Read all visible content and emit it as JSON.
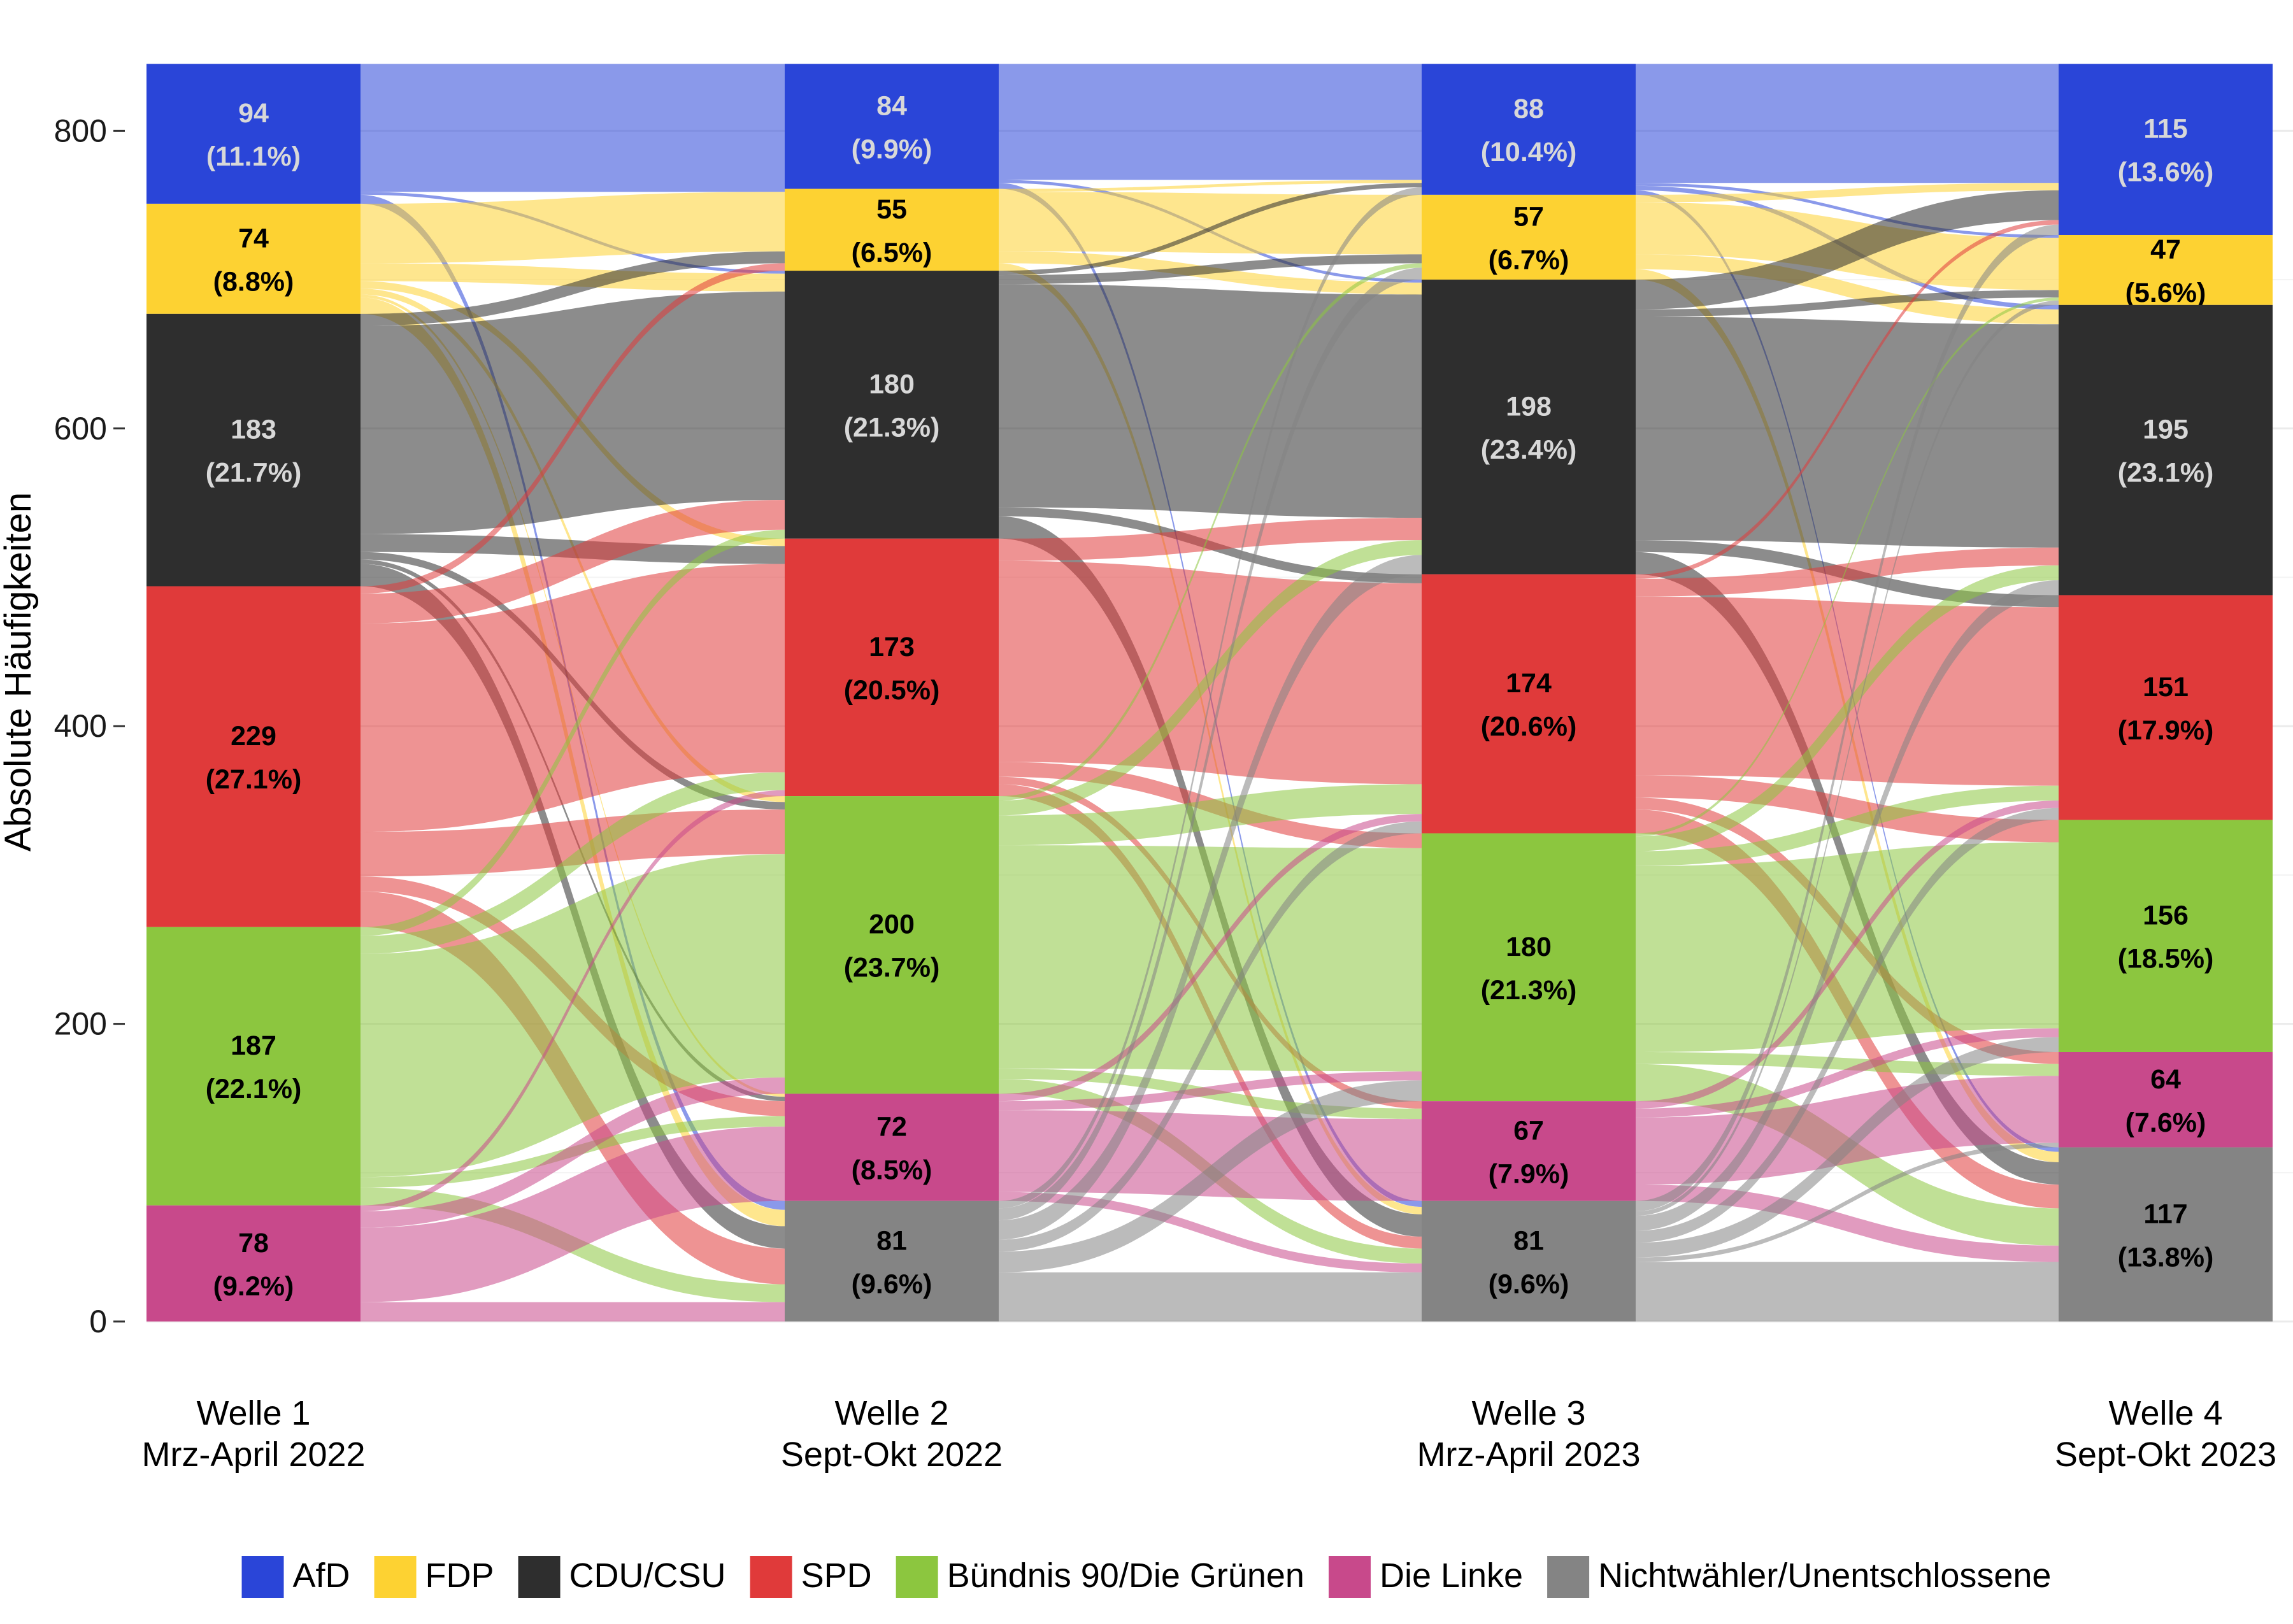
{
  "chart_data": {
    "type": "alluvial",
    "title": "",
    "ylabel": "Absolute Häufigkeiten",
    "ylim": [
      0,
      845
    ],
    "yticks": [
      0,
      200,
      400,
      600,
      800
    ],
    "grid": true,
    "legend_position": "bottom",
    "categories": [
      "AfD",
      "FDP",
      "CDU/CSU",
      "SPD",
      "Bündnis 90/Die Grünen",
      "Die Linke",
      "Nichtwähler/Unentschlossene"
    ],
    "colors": {
      "AfD": "#2a45d8",
      "FDP": "#fdd232",
      "CDU/CSU": "#2e2e2e",
      "SPD": "#e03a3a",
      "Bündnis 90/Die Grünen": "#8cc63f",
      "Die Linke": "#c8498b",
      "Nichtwähler/Unentschlossene": "#848484"
    },
    "waves": [
      {
        "label": [
          "Welle 1",
          "Mrz-April 2022"
        ],
        "nodes": [
          {
            "party": "AfD",
            "value": 94,
            "count_label": "94",
            "pct_label": "(11.1%)"
          },
          {
            "party": "FDP",
            "value": 74,
            "count_label": "74",
            "pct_label": "(8.8%)"
          },
          {
            "party": "CDU/CSU",
            "value": 183,
            "count_label": "183",
            "pct_label": "(21.7%)"
          },
          {
            "party": "SPD",
            "value": 229,
            "count_label": "229",
            "pct_label": "(27.1%)"
          },
          {
            "party": "Bündnis 90/Die Grünen",
            "value": 187,
            "count_label": "187",
            "pct_label": "(22.1%)"
          },
          {
            "party": "Die Linke",
            "value": 78,
            "count_label": "78",
            "pct_label": "(9.2%)"
          }
        ]
      },
      {
        "label": [
          "Welle 2",
          "Sept-Okt 2022"
        ],
        "nodes": [
          {
            "party": "AfD",
            "value": 84,
            "count_label": "84",
            "pct_label": "(9.9%)"
          },
          {
            "party": "FDP",
            "value": 55,
            "count_label": "55",
            "pct_label": "(6.5%)"
          },
          {
            "party": "CDU/CSU",
            "value": 180,
            "count_label": "180",
            "pct_label": "(21.3%)"
          },
          {
            "party": "SPD",
            "value": 173,
            "count_label": "173",
            "pct_label": "(20.5%)"
          },
          {
            "party": "Bündnis 90/Die Grünen",
            "value": 200,
            "count_label": "200",
            "pct_label": "(23.7%)"
          },
          {
            "party": "Die Linke",
            "value": 72,
            "count_label": "72",
            "pct_label": "(8.5%)"
          },
          {
            "party": "Nichtwähler/Unentschlossene",
            "value": 81,
            "count_label": "81",
            "pct_label": "(9.6%)"
          }
        ]
      },
      {
        "label": [
          "Welle 3",
          "Mrz-April 2023"
        ],
        "nodes": [
          {
            "party": "AfD",
            "value": 88,
            "count_label": "88",
            "pct_label": "(10.4%)"
          },
          {
            "party": "FDP",
            "value": 57,
            "count_label": "57",
            "pct_label": "(6.7%)"
          },
          {
            "party": "CDU/CSU",
            "value": 198,
            "count_label": "198",
            "pct_label": "(23.4%)"
          },
          {
            "party": "SPD",
            "value": 174,
            "count_label": "174",
            "pct_label": "(20.6%)"
          },
          {
            "party": "Bündnis 90/Die Grünen",
            "value": 180,
            "count_label": "180",
            "pct_label": "(21.3%)"
          },
          {
            "party": "Die Linke",
            "value": 67,
            "count_label": "67",
            "pct_label": "(7.9%)"
          },
          {
            "party": "Nichtwähler/Unentschlossene",
            "value": 81,
            "count_label": "81",
            "pct_label": "(9.6%)"
          }
        ]
      },
      {
        "label": [
          "Welle 4",
          "Sept-Okt 2023"
        ],
        "nodes": [
          {
            "party": "AfD",
            "value": 115,
            "count_label": "115",
            "pct_label": "(13.6%)"
          },
          {
            "party": "FDP",
            "value": 47,
            "count_label": "47",
            "pct_label": "(5.6%)"
          },
          {
            "party": "CDU/CSU",
            "value": 195,
            "count_label": "195",
            "pct_label": "(23.1%)"
          },
          {
            "party": "SPD",
            "value": 151,
            "count_label": "151",
            "pct_label": "(17.9%)"
          },
          {
            "party": "Bündnis 90/Die Grünen",
            "value": 156,
            "count_label": "156",
            "pct_label": "(18.5%)"
          },
          {
            "party": "Die Linke",
            "value": 64,
            "count_label": "64",
            "pct_label": "(7.6%)"
          },
          {
            "party": "Nichtwähler/Unentschlossene",
            "value": 117,
            "count_label": "117",
            "pct_label": "(13.8%)"
          }
        ]
      }
    ],
    "flows": [
      [
        [
          "AfD",
          "AfD",
          84
        ],
        [
          "AfD",
          "FDP",
          2
        ],
        [
          "AfD",
          "CDU/CSU",
          2
        ],
        [
          "AfD",
          "Nichtwähler/Unentschlossene",
          6
        ],
        [
          "FDP",
          "FDP",
          40
        ],
        [
          "FDP",
          "CDU/CSU",
          12
        ],
        [
          "FDP",
          "SPD",
          5
        ],
        [
          "FDP",
          "Bündnis 90/Die Grünen",
          4
        ],
        [
          "FDP",
          "Die Linke",
          2
        ],
        [
          "FDP",
          "Nichtwähler/Unentschlossene",
          11
        ],
        [
          "CDU/CSU",
          "FDP",
          8
        ],
        [
          "CDU/CSU",
          "CDU/CSU",
          140
        ],
        [
          "CDU/CSU",
          "SPD",
          12
        ],
        [
          "CDU/CSU",
          "Bündnis 90/Die Grünen",
          5
        ],
        [
          "CDU/CSU",
          "Die Linke",
          3
        ],
        [
          "CDU/CSU",
          "Nichtwähler/Unentschlossene",
          15
        ],
        [
          "SPD",
          "FDP",
          5
        ],
        [
          "SPD",
          "CDU/CSU",
          20
        ],
        [
          "SPD",
          "SPD",
          140
        ],
        [
          "SPD",
          "Bündnis 90/Die Grünen",
          30
        ],
        [
          "SPD",
          "Die Linke",
          10
        ],
        [
          "SPD",
          "Nichtwähler/Unentschlossene",
          24
        ],
        [
          "Bündnis 90/Die Grünen",
          "CDU/CSU",
          6
        ],
        [
          "Bündnis 90/Die Grünen",
          "SPD",
          12
        ],
        [
          "Bündnis 90/Die Grünen",
          "Bündnis 90/Die Grünen",
          150
        ],
        [
          "Bündnis 90/Die Grünen",
          "Die Linke",
          7
        ],
        [
          "Bündnis 90/Die Grünen",
          "Nichtwähler/Unentschlossene",
          12
        ],
        [
          "Die Linke",
          "SPD",
          4
        ],
        [
          "Die Linke",
          "Bündnis 90/Die Grünen",
          11
        ],
        [
          "Die Linke",
          "Die Linke",
          50
        ],
        [
          "Die Linke",
          "Nichtwähler/Unentschlossene",
          13
        ]
      ],
      [
        [
          "AfD",
          "AfD",
          78
        ],
        [
          "AfD",
          "CDU/CSU",
          2
        ],
        [
          "AfD",
          "Nichtwähler/Unentschlossene",
          4
        ],
        [
          "FDP",
          "AfD",
          2
        ],
        [
          "FDP",
          "FDP",
          40
        ],
        [
          "FDP",
          "CDU/CSU",
          8
        ],
        [
          "FDP",
          "Nichtwähler/Unentschlossene",
          5
        ],
        [
          "CDU/CSU",
          "AfD",
          3
        ],
        [
          "CDU/CSU",
          "FDP",
          6
        ],
        [
          "CDU/CSU",
          "CDU/CSU",
          150
        ],
        [
          "CDU/CSU",
          "SPD",
          6
        ],
        [
          "CDU/CSU",
          "Nichtwähler/Unentschlossene",
          15
        ],
        [
          "SPD",
          "CDU/CSU",
          15
        ],
        [
          "SPD",
          "SPD",
          135
        ],
        [
          "SPD",
          "Bündnis 90/Die Grünen",
          10
        ],
        [
          "SPD",
          "Die Linke",
          5
        ],
        [
          "SPD",
          "Nichtwähler/Unentschlossene",
          8
        ],
        [
          "Bündnis 90/Die Grünen",
          "FDP",
          3
        ],
        [
          "Bündnis 90/Die Grünen",
          "CDU/CSU",
          10
        ],
        [
          "Bündnis 90/Die Grünen",
          "SPD",
          20
        ],
        [
          "Bündnis 90/Die Grünen",
          "Bündnis 90/Die Grünen",
          150
        ],
        [
          "Bündnis 90/Die Grünen",
          "Die Linke",
          7
        ],
        [
          "Bündnis 90/Die Grünen",
          "Nichtwähler/Unentschlossene",
          10
        ],
        [
          "Die Linke",
          "SPD",
          5
        ],
        [
          "Die Linke",
          "Bündnis 90/Die Grünen",
          6
        ],
        [
          "Die Linke",
          "Die Linke",
          55
        ],
        [
          "Die Linke",
          "Nichtwähler/Unentschlossene",
          6
        ],
        [
          "Nichtwähler/Unentschlossene",
          "AfD",
          5
        ],
        [
          "Nichtwähler/Unentschlossene",
          "FDP",
          8
        ],
        [
          "Nichtwähler/Unentschlossene",
          "CDU/CSU",
          13
        ],
        [
          "Nichtwähler/Unentschlossene",
          "SPD",
          8
        ],
        [
          "Nichtwähler/Unentschlossene",
          "Bündnis 90/Die Grünen",
          14
        ],
        [
          "Nichtwähler/Unentschlossene",
          "Die Linke",
          0
        ],
        [
          "Nichtwähler/Unentschlossene",
          "Nichtwähler/Unentschlossene",
          33
        ]
      ],
      [
        [
          "AfD",
          "AfD",
          80
        ],
        [
          "AfD",
          "FDP",
          2
        ],
        [
          "AfD",
          "CDU/CSU",
          3
        ],
        [
          "AfD",
          "Nichtwähler/Unentschlossene",
          3
        ],
        [
          "FDP",
          "AfD",
          5
        ],
        [
          "FDP",
          "FDP",
          35
        ],
        [
          "FDP",
          "CDU/CSU",
          10
        ],
        [
          "FDP",
          "Nichtwähler/Unentschlossene",
          7
        ],
        [
          "CDU/CSU",
          "AfD",
          20
        ],
        [
          "CDU/CSU",
          "FDP",
          5
        ],
        [
          "CDU/CSU",
          "CDU/CSU",
          150
        ],
        [
          "CDU/CSU",
          "SPD",
          8
        ],
        [
          "CDU/CSU",
          "Nichtwähler/Unentschlossene",
          15
        ],
        [
          "SPD",
          "AfD",
          3
        ],
        [
          "SPD",
          "CDU/CSU",
          12
        ],
        [
          "SPD",
          "SPD",
          120
        ],
        [
          "SPD",
          "Bündnis 90/Die Grünen",
          15
        ],
        [
          "SPD",
          "Die Linke",
          8
        ],
        [
          "SPD",
          "Nichtwähler/Unentschlossene",
          16
        ],
        [
          "Bündnis 90/Die Grünen",
          "FDP",
          2
        ],
        [
          "Bündnis 90/Die Grünen",
          "CDU/CSU",
          10
        ],
        [
          "Bündnis 90/Die Grünen",
          "SPD",
          10
        ],
        [
          "Bündnis 90/Die Grünen",
          "Bündnis 90/Die Grünen",
          125
        ],
        [
          "Bündnis 90/Die Grünen",
          "Die Linke",
          8
        ],
        [
          "Bündnis 90/Die Grünen",
          "Nichtwähler/Unentschlossene",
          25
        ],
        [
          "Die Linke",
          "SPD",
          5
        ],
        [
          "Die Linke",
          "Bündnis 90/Die Grünen",
          6
        ],
        [
          "Die Linke",
          "Die Linke",
          45
        ],
        [
          "Die Linke",
          "Nichtwähler/Unentschlossene",
          11
        ],
        [
          "Nichtwähler/Unentschlossene",
          "AfD",
          7
        ],
        [
          "Nichtwähler/Unentschlossene",
          "FDP",
          3
        ],
        [
          "Nichtwähler/Unentschlossene",
          "CDU/CSU",
          10
        ],
        [
          "Nichtwähler/Unentschlossene",
          "SPD",
          8
        ],
        [
          "Nichtwähler/Unentschlossene",
          "Bündnis 90/Die Grünen",
          10
        ],
        [
          "Nichtwähler/Unentschlossene",
          "Die Linke",
          3
        ],
        [
          "Nichtwähler/Unentschlossene",
          "Nichtwähler/Unentschlossene",
          40
        ]
      ]
    ]
  },
  "legend": {
    "items": [
      {
        "label": "AfD",
        "color": "#2a45d8"
      },
      {
        "label": "FDP",
        "color": "#fdd232"
      },
      {
        "label": "CDU/CSU",
        "color": "#2e2e2e"
      },
      {
        "label": "SPD",
        "color": "#e03a3a"
      },
      {
        "label": "Bündnis 90/Die Grünen",
        "color": "#8cc63f"
      },
      {
        "label": "Die Linke",
        "color": "#c8498b"
      },
      {
        "label": "Nichtwähler/Unentschlossene",
        "color": "#848484"
      }
    ]
  }
}
